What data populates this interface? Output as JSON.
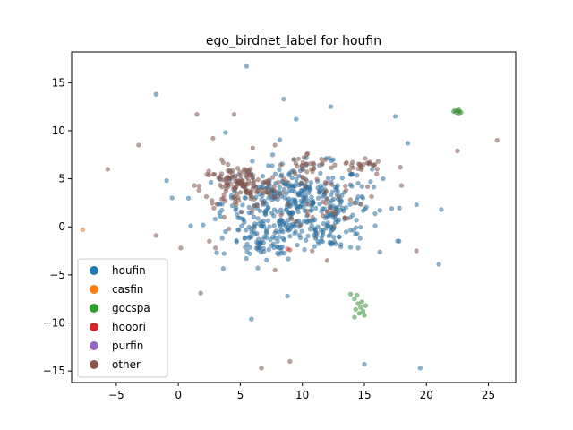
{
  "chart_data": {
    "type": "scatter",
    "title": "ego_birdnet_label for houfin",
    "xlabel": "",
    "ylabel": "",
    "xlim": [
      -8.6,
      27.2
    ],
    "ylim": [
      -16.2,
      18.2
    ],
    "xticks": [
      -5,
      0,
      5,
      10,
      15,
      20,
      25
    ],
    "yticks": [
      -15,
      -10,
      -5,
      0,
      5,
      10,
      15
    ],
    "grid": false,
    "legend_position": "lower-left",
    "legend": [
      {
        "name": "houfin",
        "color": "#1f77b4"
      },
      {
        "name": "casfin",
        "color": "#ff7f0e"
      },
      {
        "name": "gocspa",
        "color": "#2ca02c"
      },
      {
        "name": "hooori",
        "color": "#d62728"
      },
      {
        "name": "purfin",
        "color": "#9467bd"
      },
      {
        "name": "other",
        "color": "#8c564b"
      }
    ],
    "series": [
      {
        "name": "houfin",
        "color": "#1f77b4",
        "clusters": [
          {
            "cx": 9.5,
            "cy": 2.5,
            "sx": 3.0,
            "sy": 2.0,
            "n": 380
          },
          {
            "cx": 6.8,
            "cy": -1.8,
            "sx": 1.4,
            "sy": 1.0,
            "n": 70
          },
          {
            "cx": 12.5,
            "cy": -0.5,
            "sx": 1.4,
            "sy": 0.9,
            "n": 50
          }
        ],
        "points": [
          [
            5.5,
            16.7
          ],
          [
            8.5,
            13.3
          ],
          [
            12.3,
            12.5
          ],
          [
            -1.8,
            13.8
          ],
          [
            17.5,
            11.5
          ],
          [
            18.5,
            8.7
          ],
          [
            9.5,
            11.2
          ],
          [
            15.0,
            -14.3
          ],
          [
            19.5,
            -14.7
          ],
          [
            21.0,
            -3.9
          ],
          [
            17.2,
            1.9
          ],
          [
            -0.5,
            3.0
          ],
          [
            1.0,
            0.1
          ],
          [
            2.0,
            0.2
          ],
          [
            21.2,
            1.8
          ],
          [
            19.2,
            2.3
          ],
          [
            8.8,
            -7.2
          ],
          [
            5.9,
            -9.6
          ],
          [
            14.5,
            -2.2
          ],
          [
            16.5,
            5.0
          ],
          [
            17.8,
            -1.5
          ],
          [
            15.5,
            4.7
          ],
          [
            3.8,
            9.8
          ],
          [
            12.5,
            7.0
          ]
        ]
      },
      {
        "name": "casfin",
        "color": "#ff7f0e",
        "points": [
          [
            -7.7,
            -0.3
          ]
        ]
      },
      {
        "name": "gocspa",
        "color": "#2ca02c",
        "points": [
          [
            22.2,
            12.0
          ],
          [
            22.4,
            11.9
          ],
          [
            22.5,
            12.1
          ],
          [
            22.6,
            11.8
          ],
          [
            22.7,
            12.0
          ],
          [
            22.3,
            12.1
          ],
          [
            22.8,
            11.9
          ],
          [
            22.6,
            12.2
          ],
          [
            14.2,
            -7.5
          ],
          [
            14.5,
            -8.0
          ],
          [
            14.7,
            -8.4
          ],
          [
            14.9,
            -8.8
          ],
          [
            15.0,
            -9.2
          ],
          [
            14.3,
            -8.6
          ],
          [
            14.8,
            -7.8
          ],
          [
            14.6,
            -9.0
          ],
          [
            15.1,
            -8.2
          ],
          [
            14.4,
            -7.1
          ],
          [
            13.9,
            -7.0
          ],
          [
            14.2,
            -9.4
          ]
        ]
      },
      {
        "name": "hooori",
        "color": "#d62728",
        "points": [
          [
            8.8,
            -2.3
          ],
          [
            9.0,
            -2.4
          ]
        ]
      },
      {
        "name": "purfin",
        "color": "#9467bd",
        "points": []
      },
      {
        "name": "other",
        "color": "#8c564b",
        "clusters": [
          {
            "cx": 5.0,
            "cy": 4.2,
            "sx": 1.6,
            "sy": 1.1,
            "n": 150
          },
          {
            "cx": 10.5,
            "cy": 6.5,
            "sx": 0.9,
            "sy": 0.6,
            "n": 25
          },
          {
            "cx": 14.5,
            "cy": 6.4,
            "sx": 1.0,
            "sy": 0.4,
            "n": 25
          },
          {
            "cx": 12.0,
            "cy": 3.0,
            "sx": 1.5,
            "sy": 1.5,
            "n": 40
          }
        ],
        "points": [
          [
            -5.7,
            6.0
          ],
          [
            -3.2,
            8.5
          ],
          [
            1.5,
            11.7
          ],
          [
            4.5,
            11.7
          ],
          [
            2.8,
            9.2
          ],
          [
            7.8,
            8.5
          ],
          [
            25.7,
            9.0
          ],
          [
            22.5,
            7.9
          ],
          [
            18.0,
            4.3
          ],
          [
            16.0,
            5.5
          ],
          [
            9.0,
            -14.0
          ],
          [
            7.8,
            -4.5
          ],
          [
            10.8,
            -2.5
          ],
          [
            19.2,
            -2.5
          ],
          [
            6.7,
            -14.7
          ],
          [
            3.7,
            1.0
          ],
          [
            2.5,
            -1.5
          ],
          [
            12.0,
            -3.5
          ],
          [
            1.8,
            -6.9
          ],
          [
            -1.8,
            -0.9
          ],
          [
            0.2,
            -2.2
          ],
          [
            3.0,
            -2.2
          ],
          [
            8.5,
            5.0
          ],
          [
            6.0,
            8.2
          ],
          [
            3.5,
            7.0
          ],
          [
            9.3,
            7.0
          ],
          [
            11.6,
            6.6
          ],
          [
            13.5,
            6.6
          ],
          [
            17.9,
            6.2
          ],
          [
            4.0,
            6.5
          ]
        ]
      }
    ]
  }
}
